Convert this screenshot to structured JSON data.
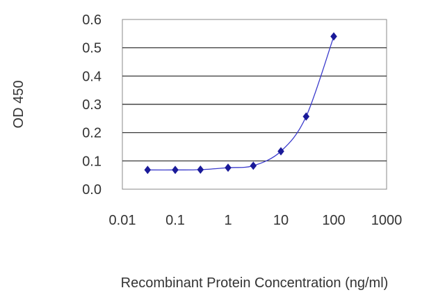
{
  "chart_data": {
    "type": "line",
    "title": "",
    "xlabel": "Recombinant Protein Concentration (ng/ml)",
    "ylabel": "OD 450",
    "x_scale": "log",
    "xlim": [
      0.01,
      1000
    ],
    "ylim": [
      0.0,
      0.6
    ],
    "x_ticks": [
      "0.01",
      "0.1",
      "1",
      "10",
      "100",
      "1000"
    ],
    "y_ticks": [
      "0.0",
      "0.1",
      "0.2",
      "0.3",
      "0.4",
      "0.5",
      "0.6"
    ],
    "grid": "horizontal",
    "legend": "none",
    "series": [
      {
        "color": "#1a1a99",
        "marker": "diamond",
        "x": [
          0.03,
          0.1,
          0.3,
          1,
          3,
          10,
          30,
          100
        ],
        "y": [
          0.068,
          0.068,
          0.069,
          0.076,
          0.083,
          0.134,
          0.257,
          0.54
        ]
      }
    ]
  }
}
